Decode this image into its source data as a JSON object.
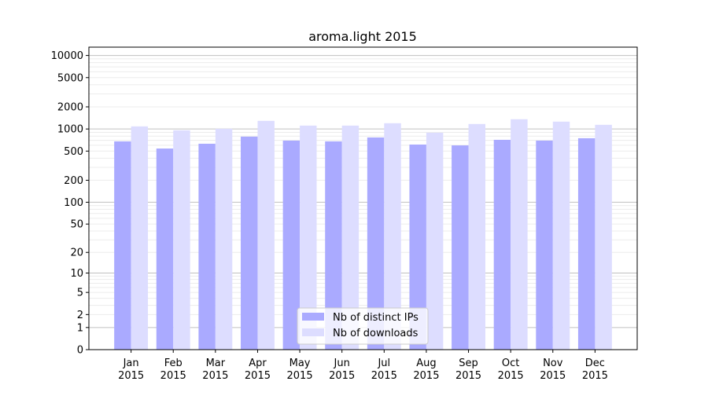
{
  "chart_data": {
    "type": "bar",
    "title": "aroma.light 2015",
    "xlabel": "",
    "ylabel": "",
    "yscale": "log(1+y)",
    "ylim": [
      0,
      13000
    ],
    "yticks": [
      0,
      1,
      2,
      5,
      10,
      20,
      50,
      100,
      200,
      500,
      1000,
      2000,
      5000,
      10000
    ],
    "grid": true,
    "legend_position": "lower-center",
    "categories": [
      "Jan\n2015",
      "Feb\n2015",
      "Mar\n2015",
      "Apr\n2015",
      "May\n2015",
      "Jun\n2015",
      "Jul\n2015",
      "Aug\n2015",
      "Sep\n2015",
      "Oct\n2015",
      "Nov\n2015",
      "Dec\n2015"
    ],
    "series": [
      {
        "name": "Nb of distinct IPs",
        "color": "#aaaaff",
        "values": [
          678,
          542,
          630,
          787,
          695,
          678,
          767,
          614,
          598,
          712,
          695,
          749
        ]
      },
      {
        "name": "Nb of downloads",
        "color": "#ddddff",
        "values": [
          1085,
          959,
          1007,
          1290,
          1112,
          1112,
          1198,
          890,
          1169,
          1357,
          1259,
          1140
        ]
      }
    ]
  }
}
